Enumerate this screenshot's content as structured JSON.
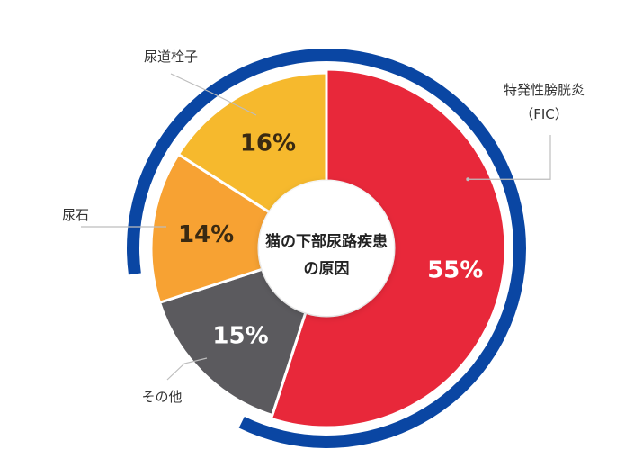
{
  "chart_data": {
    "type": "pie",
    "style": "donut",
    "center_label": [
      "猫の下部尿路疾患",
      "の原因"
    ],
    "outer_ring_color": "#0a46a3",
    "hole_color": "#ffffff",
    "segments": [
      {
        "label": "特発性膀胱炎",
        "label_line2": "（FIC）",
        "value": 55,
        "display": "55%",
        "color": "#e8283a",
        "text_color": "#ffffff"
      },
      {
        "label": "その他",
        "value": 15,
        "display": "15%",
        "color": "#5b5a5e",
        "text_color": "#ffffff"
      },
      {
        "label": "尿石",
        "value": 14,
        "display": "14%",
        "color": "#f7a233",
        "text_color": "#3a2a12"
      },
      {
        "label": "尿道栓子",
        "value": 16,
        "display": "16%",
        "color": "#f6b92d",
        "text_color": "#3a2a12"
      }
    ]
  }
}
